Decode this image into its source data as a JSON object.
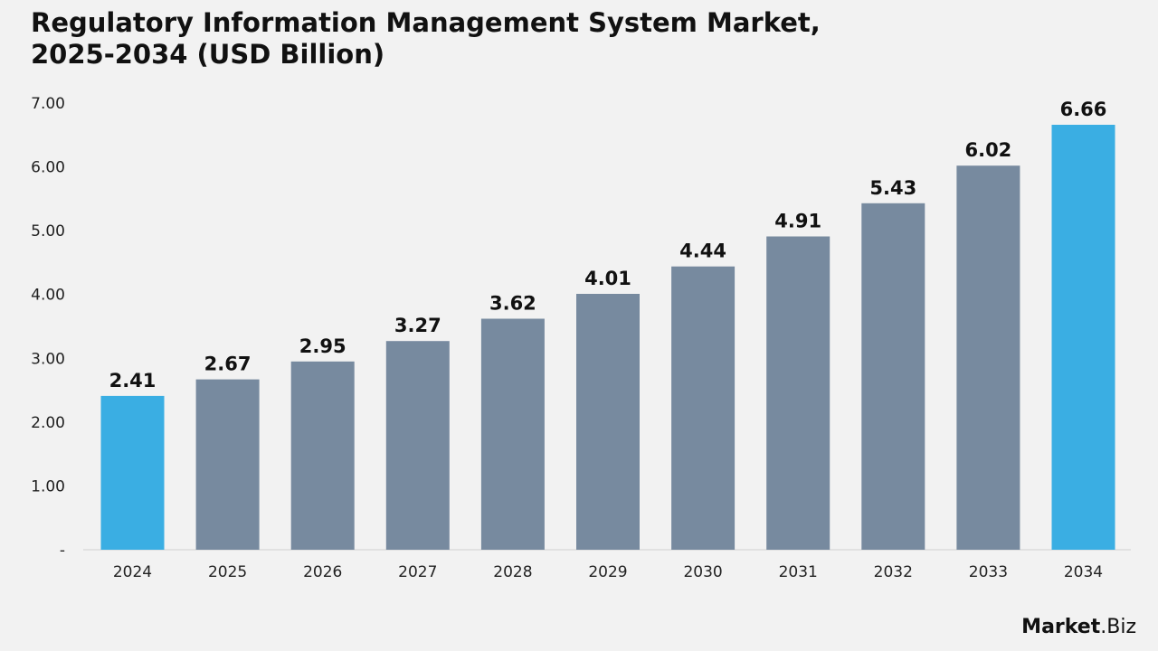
{
  "title_line1": "Regulatory Information Management System Market,",
  "title_line2": "2025-2034 (USD Billion)",
  "logo": {
    "bold": "Market",
    "light": ".Biz"
  },
  "colors": {
    "background": "#f2f2f2",
    "highlight": "#3aaee3",
    "bar": "#778a9f",
    "axis": "#d0d0d0",
    "text": "#111111",
    "tick": "#222222"
  },
  "chart_data": {
    "type": "bar",
    "categories": [
      "2024",
      "2025",
      "2026",
      "2027",
      "2028",
      "2029",
      "2030",
      "2031",
      "2032",
      "2033",
      "2034"
    ],
    "values": [
      2.41,
      2.67,
      2.95,
      3.27,
      3.62,
      4.01,
      4.44,
      4.91,
      5.43,
      6.02,
      6.66
    ],
    "value_labels": [
      "2.41",
      "2.67",
      "2.95",
      "3.27",
      "3.62",
      "4.01",
      "4.44",
      "4.91",
      "5.43",
      "6.02",
      "6.66"
    ],
    "highlighted": [
      "2024",
      "2034"
    ],
    "ylim": [
      0,
      7
    ],
    "yticks": [
      0,
      1,
      2,
      3,
      4,
      5,
      6,
      7
    ],
    "ytick_labels": [
      "-",
      "1.00",
      "2.00",
      "3.00",
      "4.00",
      "5.00",
      "6.00",
      "7.00"
    ],
    "title": "Regulatory Information Management System Market, 2025-2034 (USD Billion)",
    "xlabel": "",
    "ylabel": "",
    "grid": false,
    "legend": "none"
  }
}
